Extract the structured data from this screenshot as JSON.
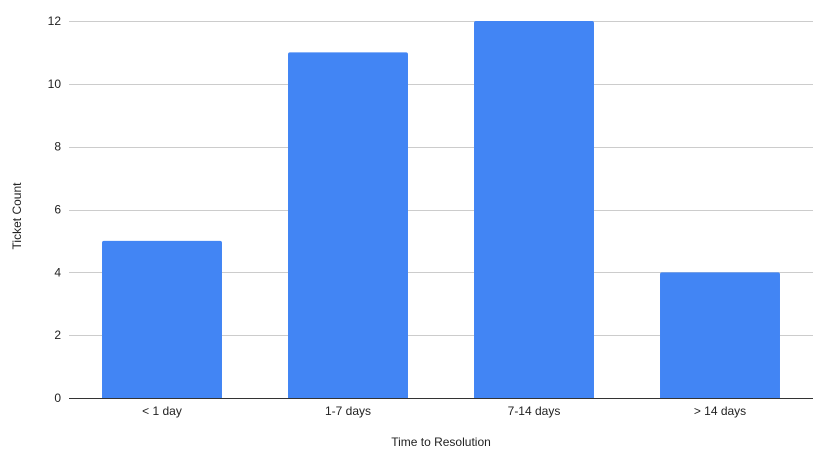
{
  "chart_data": {
    "type": "bar",
    "title": "",
    "xlabel": "Time to Resolution",
    "ylabel": "Ticket Count",
    "categories": [
      "< 1 day",
      "1-7 days",
      "7-14 days",
      "> 14 days"
    ],
    "series": [
      {
        "values": [
          5,
          11,
          12,
          4
        ],
        "color": "#4285f4"
      }
    ],
    "ylim": [
      0,
      12
    ],
    "yticks": [
      0,
      2,
      4,
      6,
      8,
      10,
      12
    ],
    "grid": true,
    "legend": "none"
  }
}
